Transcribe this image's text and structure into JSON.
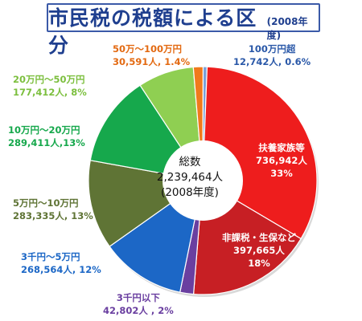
{
  "header": {
    "title": "市民税の税額による区分",
    "subtitle": "(2008年度)"
  },
  "center": {
    "line1": "総数",
    "line2": "2,239,464人",
    "line3": "(2008年度)"
  },
  "chart_data": {
    "type": "pie",
    "title": "市民税の税額による区分",
    "subtitle": "(2008年度)",
    "total": 2239464,
    "center_label": [
      "総数",
      "2,239,464人",
      "(2008年度)"
    ],
    "slices": [
      {
        "name": "100万円超",
        "count_text": "12,742人, 0.6%",
        "value": 12742,
        "percent": 0.6,
        "color": "#7aa0d8",
        "label_color": "#2a58a8"
      },
      {
        "name": "扶養家族等",
        "count_text": "736,942人",
        "pct_text": "33%",
        "value": 736942,
        "percent": 33,
        "color": "#ee1d1d",
        "label_color": "#ffffff"
      },
      {
        "name": "非課税・生保など",
        "count_text": "397,665人",
        "pct_text": "18%",
        "value": 397665,
        "percent": 18,
        "color": "#c71f24",
        "label_color": "#ffffff"
      },
      {
        "name": "3千円以下",
        "count_text": "42,802人 , 2%",
        "value": 42802,
        "percent": 2,
        "color": "#6a3fa0",
        "label_color": "#6a3fa0"
      },
      {
        "name": "3千円～5万円",
        "count_text": "268,564人, 12%",
        "value": 268564,
        "percent": 12,
        "color": "#1c67c6",
        "label_color": "#1c67c6"
      },
      {
        "name": "5万円～10万円",
        "count_text": "283,335人, 13%",
        "value": 283335,
        "percent": 13,
        "color": "#5f7435",
        "label_color": "#5f7435"
      },
      {
        "name": "10万円～20万円",
        "count_text": "289,411人,13%",
        "value": 289411,
        "percent": 13,
        "color": "#16a84c",
        "label_color": "#16a84c"
      },
      {
        "name": "20万円～50万円",
        "count_text": "177,412人, 8%",
        "value": 177412,
        "percent": 8,
        "color": "#8fcf52",
        "label_color": "#7cbf3e"
      },
      {
        "name": "50万～100万円",
        "count_text": "30,591人, 1.4%",
        "value": 30591,
        "percent": 1.4,
        "color": "#f07a1c",
        "label_color": "#e36a12"
      }
    ]
  }
}
